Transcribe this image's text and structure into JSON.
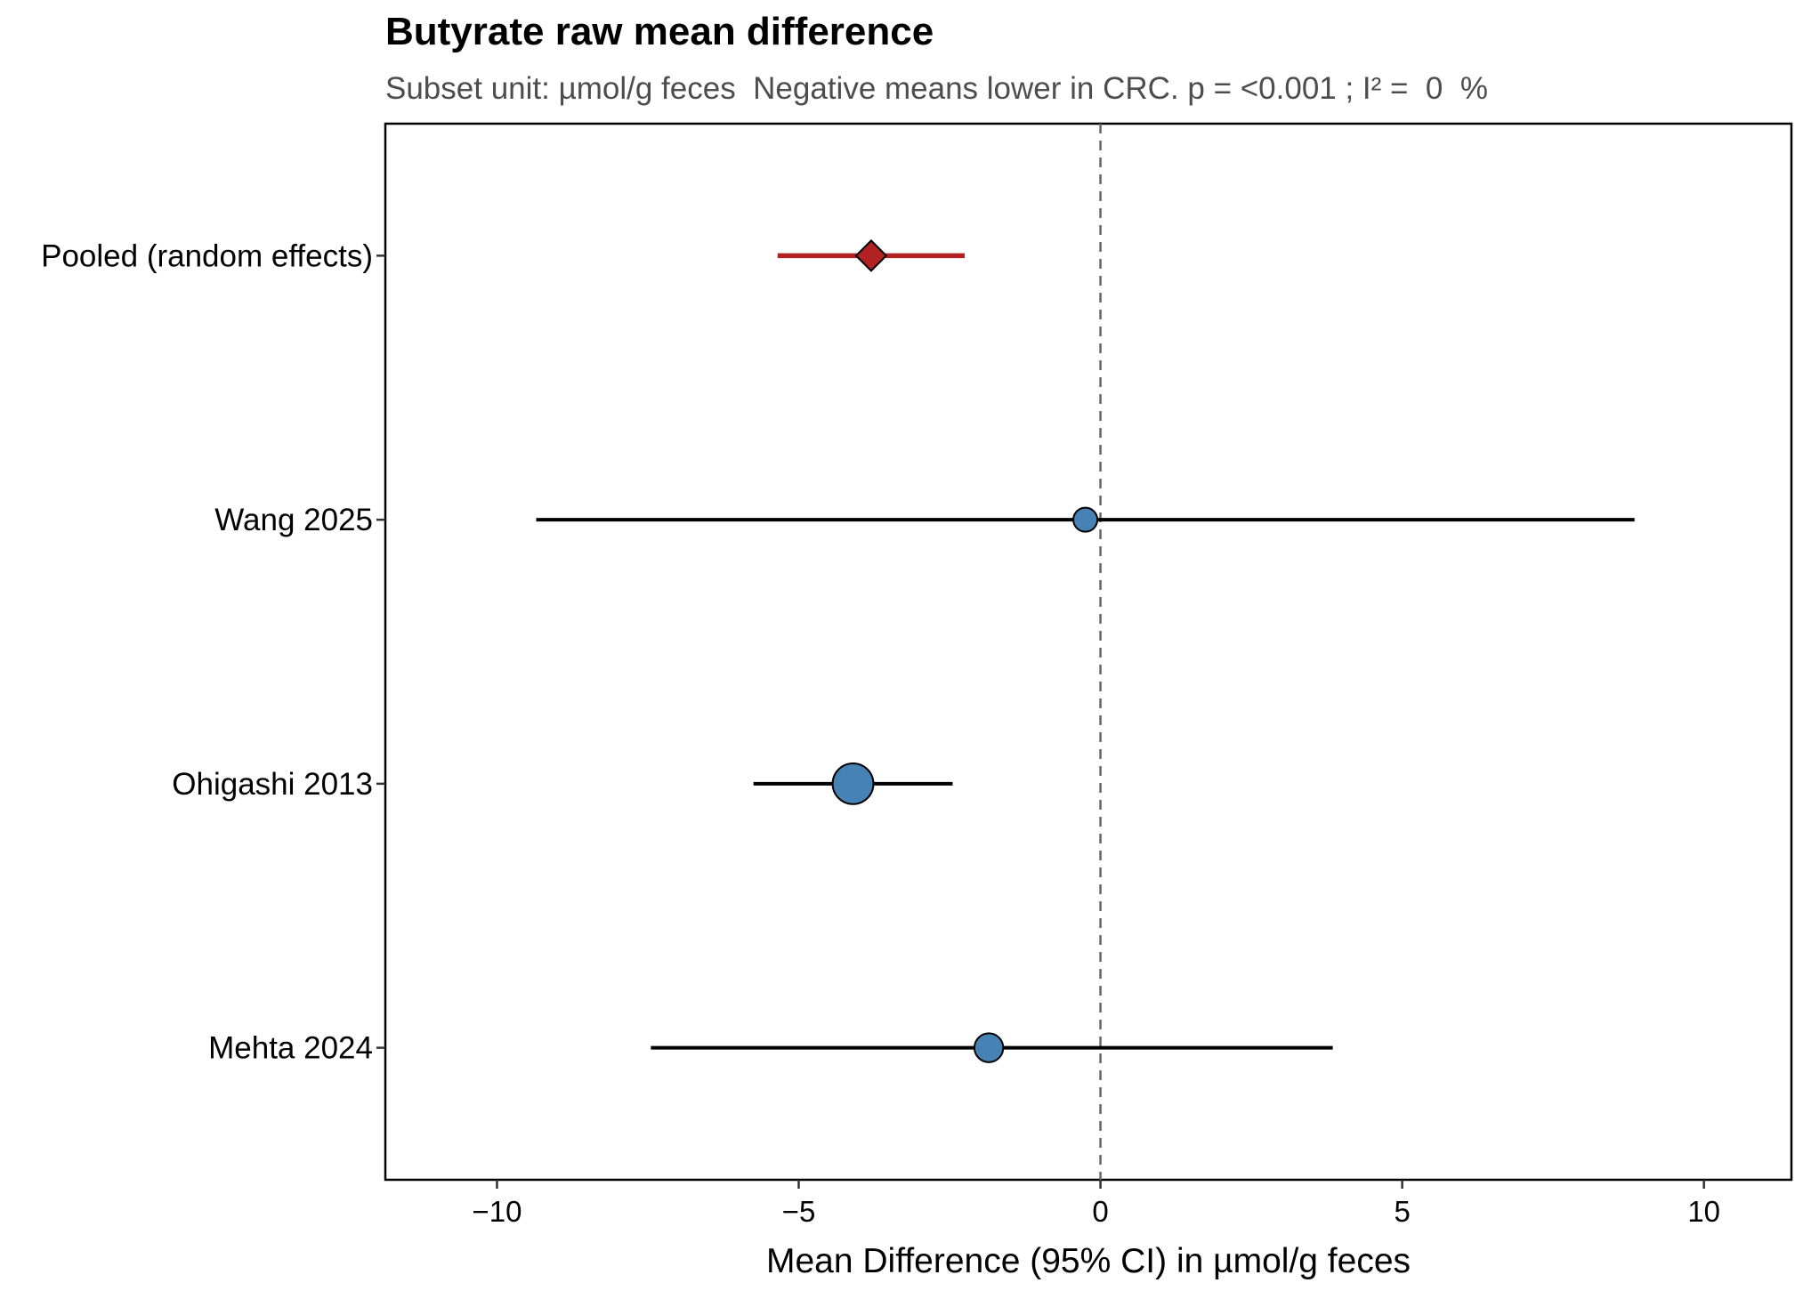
{
  "chart_data": {
    "type": "forest",
    "title": "Butyrate raw mean difference",
    "subtitle": "Subset unit: µmol/g feces  Negative means lower in CRC. p = <0.001 ; I² =  0  %",
    "xlabel": "Mean Difference (95% CI) in µmol/g feces",
    "ylabel": "",
    "xlim": [
      -11.85,
      11.45
    ],
    "x_ticks": [
      -10,
      -5,
      0,
      5,
      10
    ],
    "x_tick_labels": [
      "−10",
      "−5",
      "0",
      "5",
      "10"
    ],
    "reference_line": 0,
    "grid": false,
    "legend": "none",
    "rows": [
      {
        "label": "Pooled (random effects)",
        "estimate": -3.8,
        "ci_low": -5.35,
        "ci_high": -2.25,
        "marker": "diamond",
        "color": "#b22222",
        "weight": null
      },
      {
        "label": "Wang 2025",
        "estimate": -0.25,
        "ci_low": -9.35,
        "ci_high": 8.85,
        "marker": "circle",
        "color": "#4682b4",
        "weight": 1
      },
      {
        "label": "Ohigashi 2013",
        "estimate": -4.1,
        "ci_low": -5.75,
        "ci_high": -2.45,
        "marker": "circle",
        "color": "#4682b4",
        "weight": 6
      },
      {
        "label": "Mehta 2024",
        "estimate": -1.85,
        "ci_low": -7.45,
        "ci_high": 3.85,
        "marker": "circle",
        "color": "#4682b4",
        "weight": 2
      }
    ],
    "colors": {
      "pooled": "#b22222",
      "study": "#4682b4",
      "ci_line_study": "#000000",
      "reference_line": "#666666"
    }
  }
}
